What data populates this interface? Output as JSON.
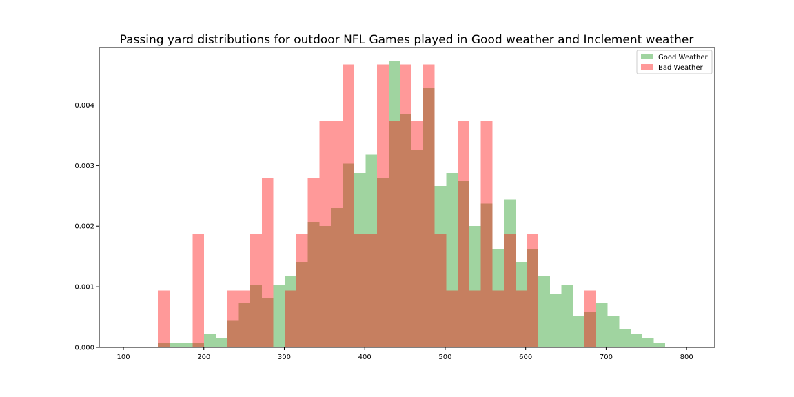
{
  "chart_data": {
    "type": "histogram",
    "title": "Passing yard distributions for outdoor NFL Games played in Good weather and Inclement weather",
    "xlabel": "",
    "ylabel": "",
    "xlim": [
      70,
      835
    ],
    "ylim": [
      0,
      0.00495
    ],
    "x_ticks": [
      "100",
      "200",
      "300",
      "400",
      "500",
      "600",
      "700",
      "800"
    ],
    "x_tick_values": [
      100,
      200,
      300,
      400,
      500,
      600,
      700,
      800
    ],
    "y_ticks": [
      "0.000",
      "0.001",
      "0.002",
      "0.003",
      "0.004"
    ],
    "y_tick_values": [
      0,
      0.001,
      0.002,
      0.003,
      0.004
    ],
    "grid": false,
    "legend_position": "top-right",
    "series": [
      {
        "name": "Good Weather",
        "color": "#2ca02c",
        "opacity": 0.45,
        "bin_start": 143,
        "bin_width": 14.33,
        "values": [
          7e-05,
          7e-05,
          7e-05,
          7e-05,
          0.00022,
          0.00015,
          0.00044,
          0.00074,
          0.00103,
          0.00081,
          0.00103,
          0.00118,
          0.00141,
          0.00207,
          0.002,
          0.0023,
          0.00303,
          0.00288,
          0.00318,
          0.0028,
          0.00473,
          0.00385,
          0.00326,
          0.00429,
          0.00266,
          0.00288,
          0.00274,
          0.002,
          0.00237,
          0.00163,
          0.00244,
          0.00141,
          0.00163,
          0.00118,
          0.00089,
          0.00103,
          0.00052,
          0.00059,
          0.00074,
          0.00052,
          0.0003,
          0.00022,
          0.00015,
          7e-05
        ]
      },
      {
        "name": "Bad Weather",
        "color": "#ff0000",
        "opacity": 0.4,
        "bin_start": 143,
        "bin_width": 14.33,
        "values": [
          0.00094,
          0,
          0,
          0.00187,
          0,
          0,
          0.00094,
          0.00094,
          0.00187,
          0.0028,
          0,
          0.00094,
          0.00187,
          0.0028,
          0.00374,
          0.00374,
          0.00467,
          0.00187,
          0.00187,
          0.00467,
          0.00374,
          0.00467,
          0.00374,
          0.00467,
          0.00187,
          0.00094,
          0.00374,
          0.00094,
          0.00374,
          0.00094,
          0.00187,
          0.00094,
          0.00187,
          0,
          0,
          0,
          0,
          0.00094
        ]
      }
    ]
  }
}
